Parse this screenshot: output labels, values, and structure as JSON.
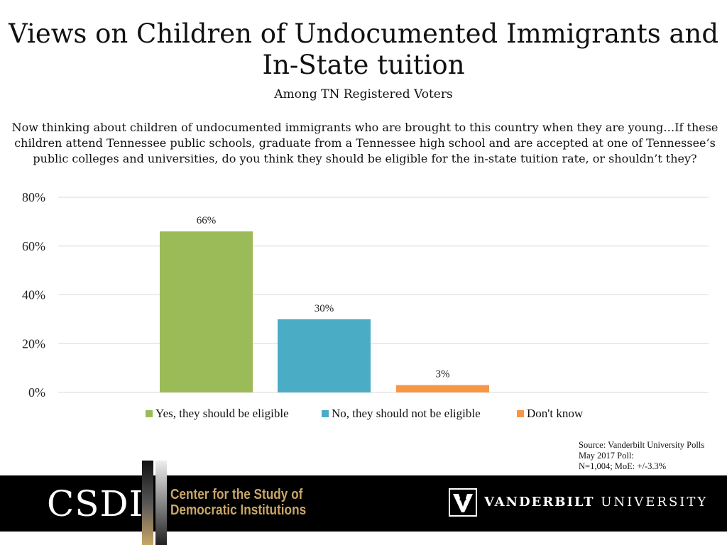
{
  "header": {
    "title_line1": "Views on Children of Undocumented Immigrants and",
    "title_line2": "In-State tuition",
    "subtitle": "Among TN Registered Voters",
    "question": "Now thinking about children of undocumented immigrants who are brought to this country when they are young…If these children attend Tennessee public schools, graduate from a Tennessee high school and are accepted at one of Tennessee’s public colleges and universities, do you think they should be eligible for the in-state tuition rate, or shouldn’t they?"
  },
  "chart_data": {
    "type": "bar",
    "categories": [
      "Yes, they should be eligible",
      "No, they should not be eligible",
      "Don't know"
    ],
    "values": [
      66,
      30,
      3
    ],
    "value_labels": [
      "66%",
      "30%",
      "3%"
    ],
    "colors": [
      "#9bbb59",
      "#4bacc6",
      "#f79646"
    ],
    "ylim": [
      0,
      80
    ],
    "yticks": [
      "0%",
      "20%",
      "40%",
      "60%",
      "80%"
    ],
    "ytick_values": [
      0,
      20,
      40,
      60,
      80
    ],
    "grid": true,
    "legend_position": "bottom"
  },
  "source": {
    "line1": "Source: Vanderbilt University Polls",
    "line2": "May 2017 Poll:",
    "line3": "N=1,004; MoE: +/-3.3%"
  },
  "footer": {
    "csdi_logo": "CSDI",
    "csdi_name_line1": "Center for the Study of",
    "csdi_name_line2": "Democratic Institutions",
    "vu_name_bold": "VANDERBILT",
    "vu_name_rest": " UNIVERSITY",
    "csdi_color": "#c9a667",
    "footer_bg": "#000000"
  }
}
